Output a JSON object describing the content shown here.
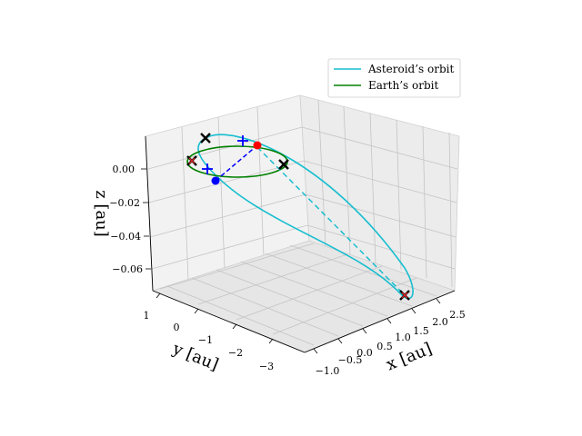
{
  "chart_data": {
    "type": "line",
    "projection": "3d",
    "axes": {
      "x": {
        "label": "x [au]",
        "ticks": [
          "−1.0",
          "−0.5",
          "0.0",
          "0.5",
          "1.0",
          "1.5",
          "2.0",
          "2.5"
        ],
        "range": [
          -1.0,
          2.6
        ]
      },
      "y": {
        "label": "y [au]",
        "ticks": [
          "1",
          "0",
          "−1",
          "−2",
          "−3"
        ],
        "range": [
          -3.4,
          1.2
        ]
      },
      "z": {
        "label": "z [au]",
        "ticks": [
          "0.00",
          "−0.02",
          "−0.04",
          "−0.06"
        ],
        "range": [
          -0.07,
          0.015
        ]
      }
    },
    "grid": true,
    "legend": {
      "position": "top-right",
      "entries": [
        {
          "label": "Asteroid’s orbit",
          "color": "#17becf"
        },
        {
          "label": "Earth’s orbit",
          "color": "#008000"
        }
      ]
    },
    "series": [
      {
        "name": "Asteroid’s orbit",
        "kind": "ellipse",
        "color": "#17becf"
      },
      {
        "name": "Earth’s orbit",
        "kind": "ellipse",
        "color": "#008000"
      }
    ],
    "annotations": {
      "red_point": {
        "color": "#ff0000"
      },
      "blue_point": {
        "color": "#0000ff"
      },
      "black_x_markers": 4,
      "red_x_markers": 2,
      "blue_plus_markers": 2,
      "dashed_lines": [
        "blue",
        "cyan"
      ]
    }
  }
}
